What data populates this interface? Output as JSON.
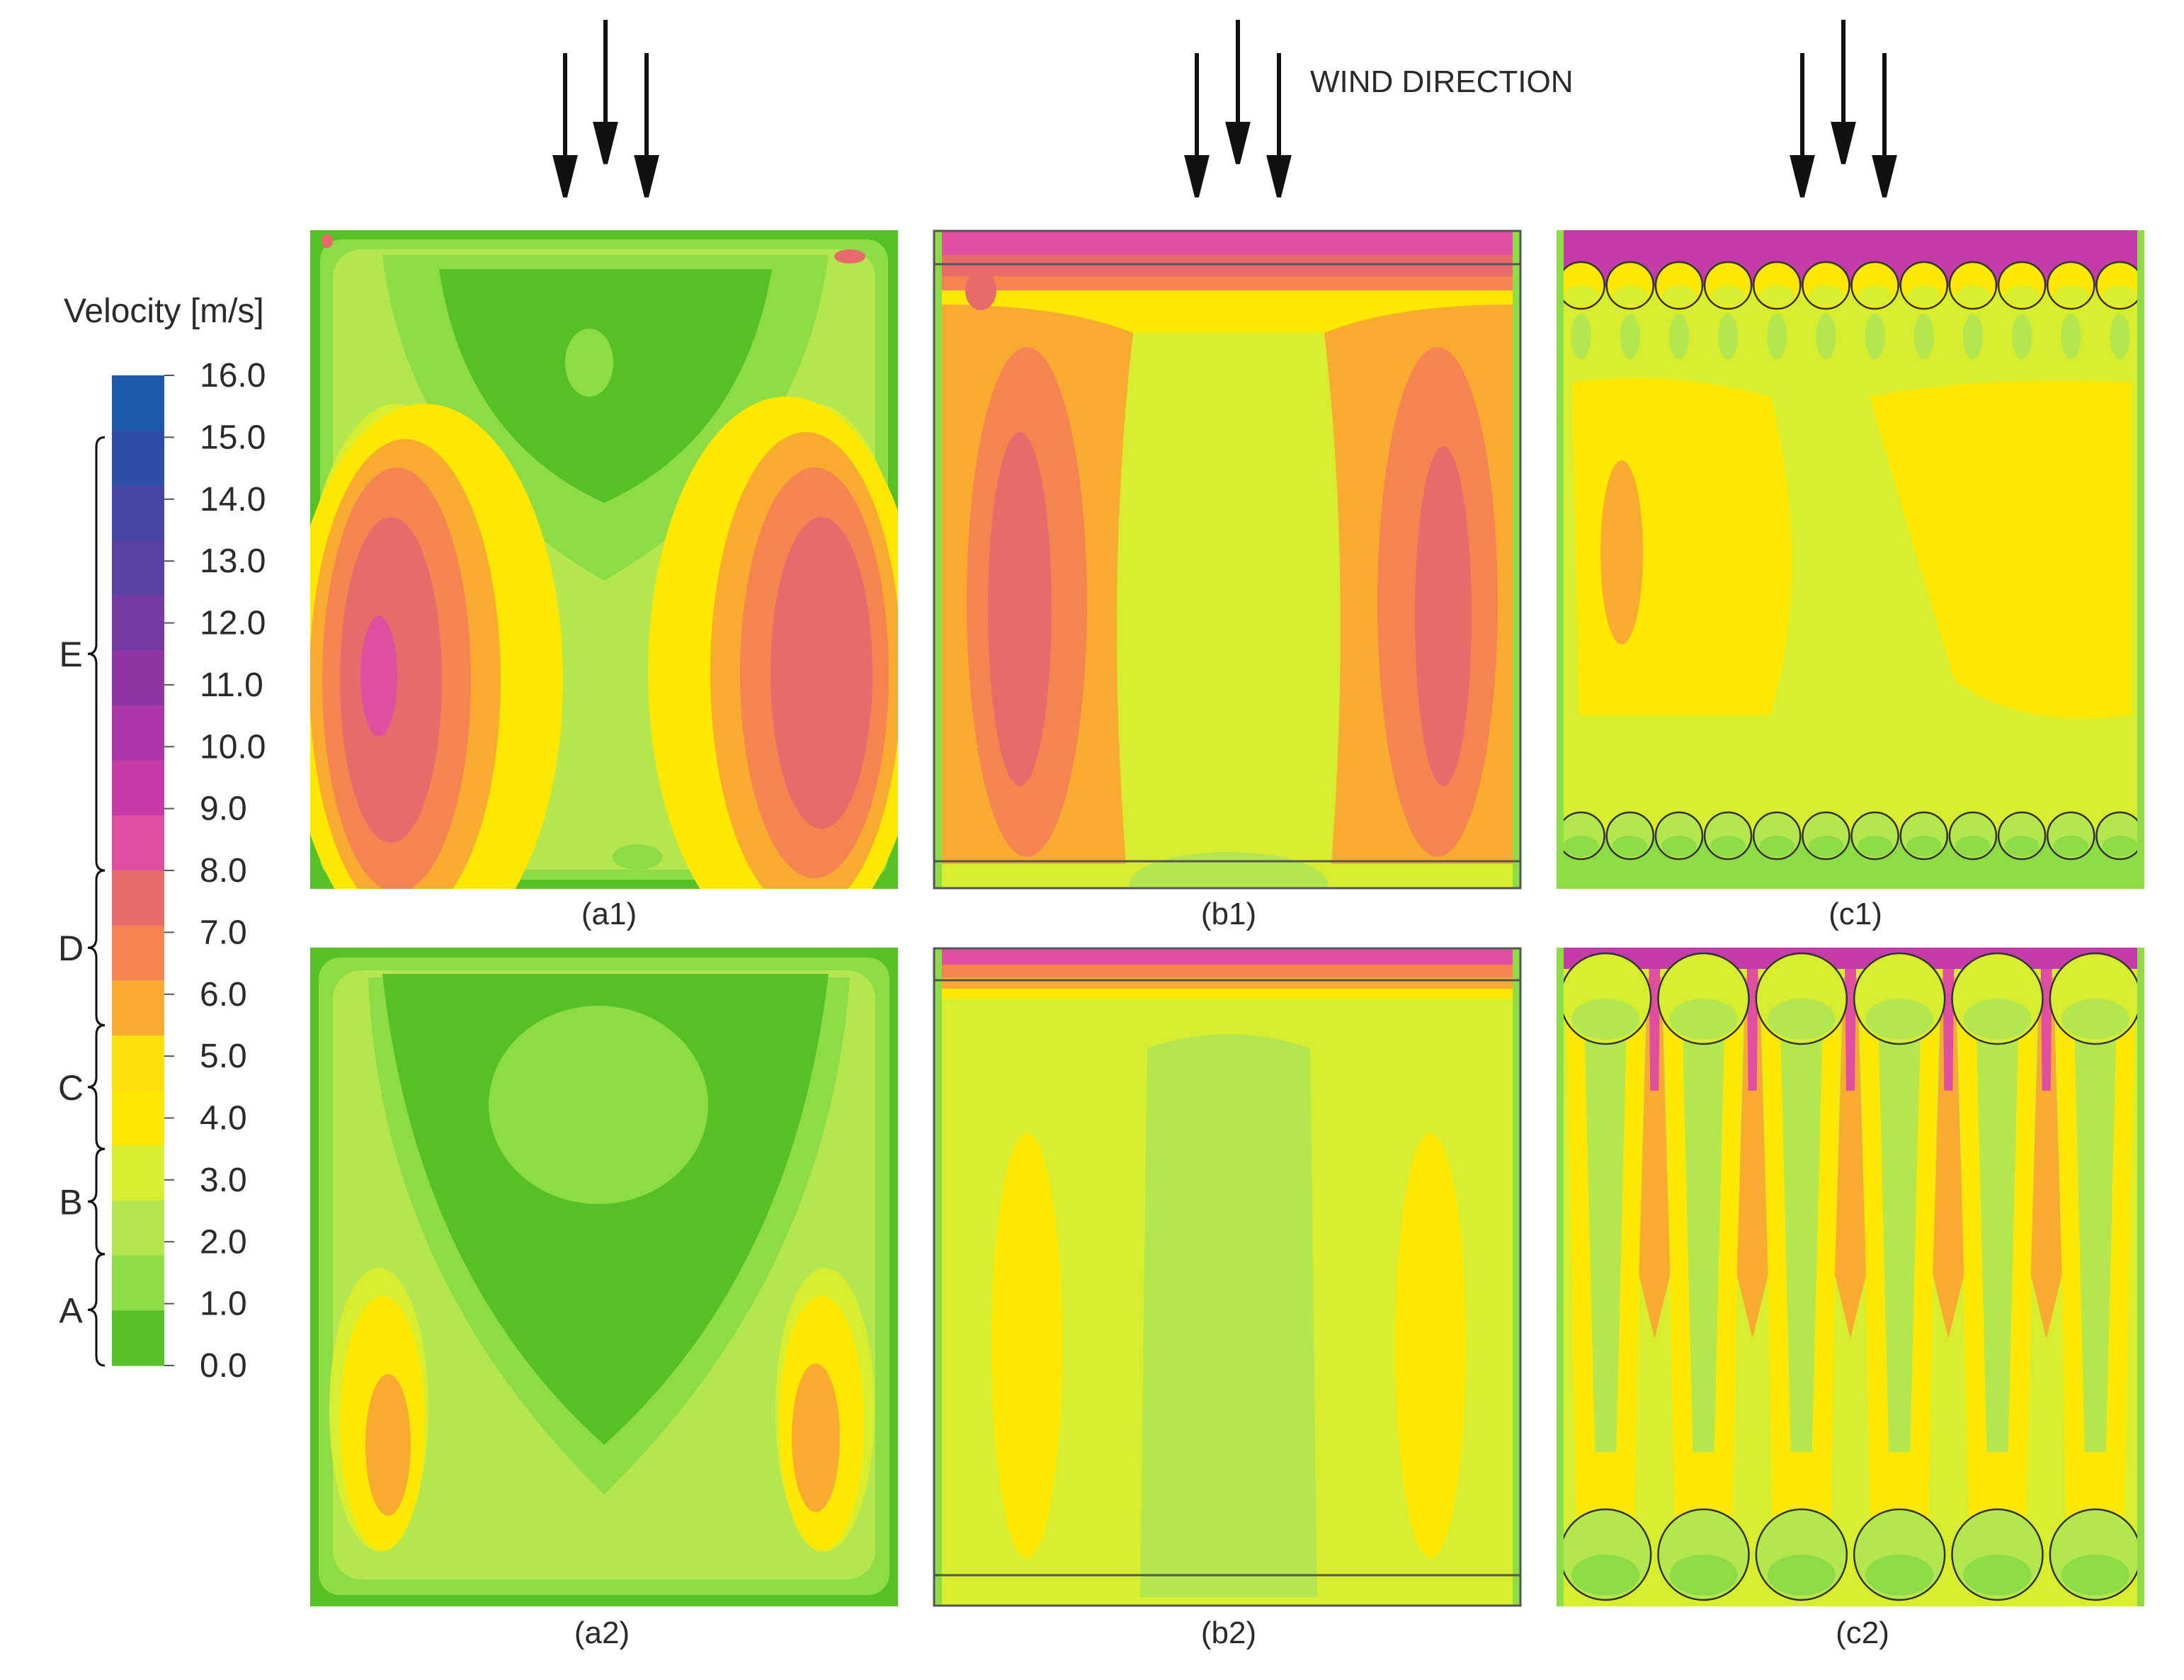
{
  "wind_direction_label": "WIND DIRECTION",
  "legend": {
    "title": "Velocity [m/s]",
    "ticks": [
      "16.0",
      "15.0",
      "14.0",
      "13.0",
      "12.0",
      "11.0",
      "10.0",
      "9.0",
      "8.0",
      "7.0",
      "6.0",
      "5.0",
      "4.0",
      "3.0",
      "2.0",
      "1.0",
      "0.0"
    ],
    "band_colors": [
      "#1b5aa8",
      "#2d4fa6",
      "#4347a3",
      "#5a41a2",
      "#773aa2",
      "#9035a6",
      "#ab36aa",
      "#c43ca7",
      "#de4fa0",
      "#e86b6c",
      "#f58550",
      "#f9aa30",
      "#ffdf0d",
      "#ffe800",
      "#d9ed2f",
      "#b3e64f",
      "#8ddb45",
      "#55c126"
    ],
    "groups": [
      {
        "letter": "E",
        "from": 8.0,
        "to": 15.0
      },
      {
        "letter": "D",
        "from": 5.5,
        "to": 8.0
      },
      {
        "letter": "C",
        "from": 3.5,
        "to": 5.5
      },
      {
        "letter": "B",
        "from": 1.8,
        "to": 3.5
      },
      {
        "letter": "A",
        "from": 0.0,
        "to": 1.8
      }
    ]
  },
  "panels": [
    {
      "id": "a1",
      "caption": "(a1)"
    },
    {
      "id": "b1",
      "caption": "(b1)"
    },
    {
      "id": "c1",
      "caption": "(c1)"
    },
    {
      "id": "a2",
      "caption": "(a2)"
    },
    {
      "id": "b2",
      "caption": "(b2)"
    },
    {
      "id": "c2",
      "caption": "(c2)"
    }
  ],
  "colors": {
    "green_dark": "#55c126",
    "green_mid": "#8ddb45",
    "green_light": "#b3e64f",
    "lime": "#d9ed2f",
    "yellow": "#ffe800",
    "orange": "#f9aa30",
    "orange_red": "#f58550",
    "salmon": "#e86b6c",
    "pink": "#de4fa0",
    "magenta": "#c43ca7"
  }
}
